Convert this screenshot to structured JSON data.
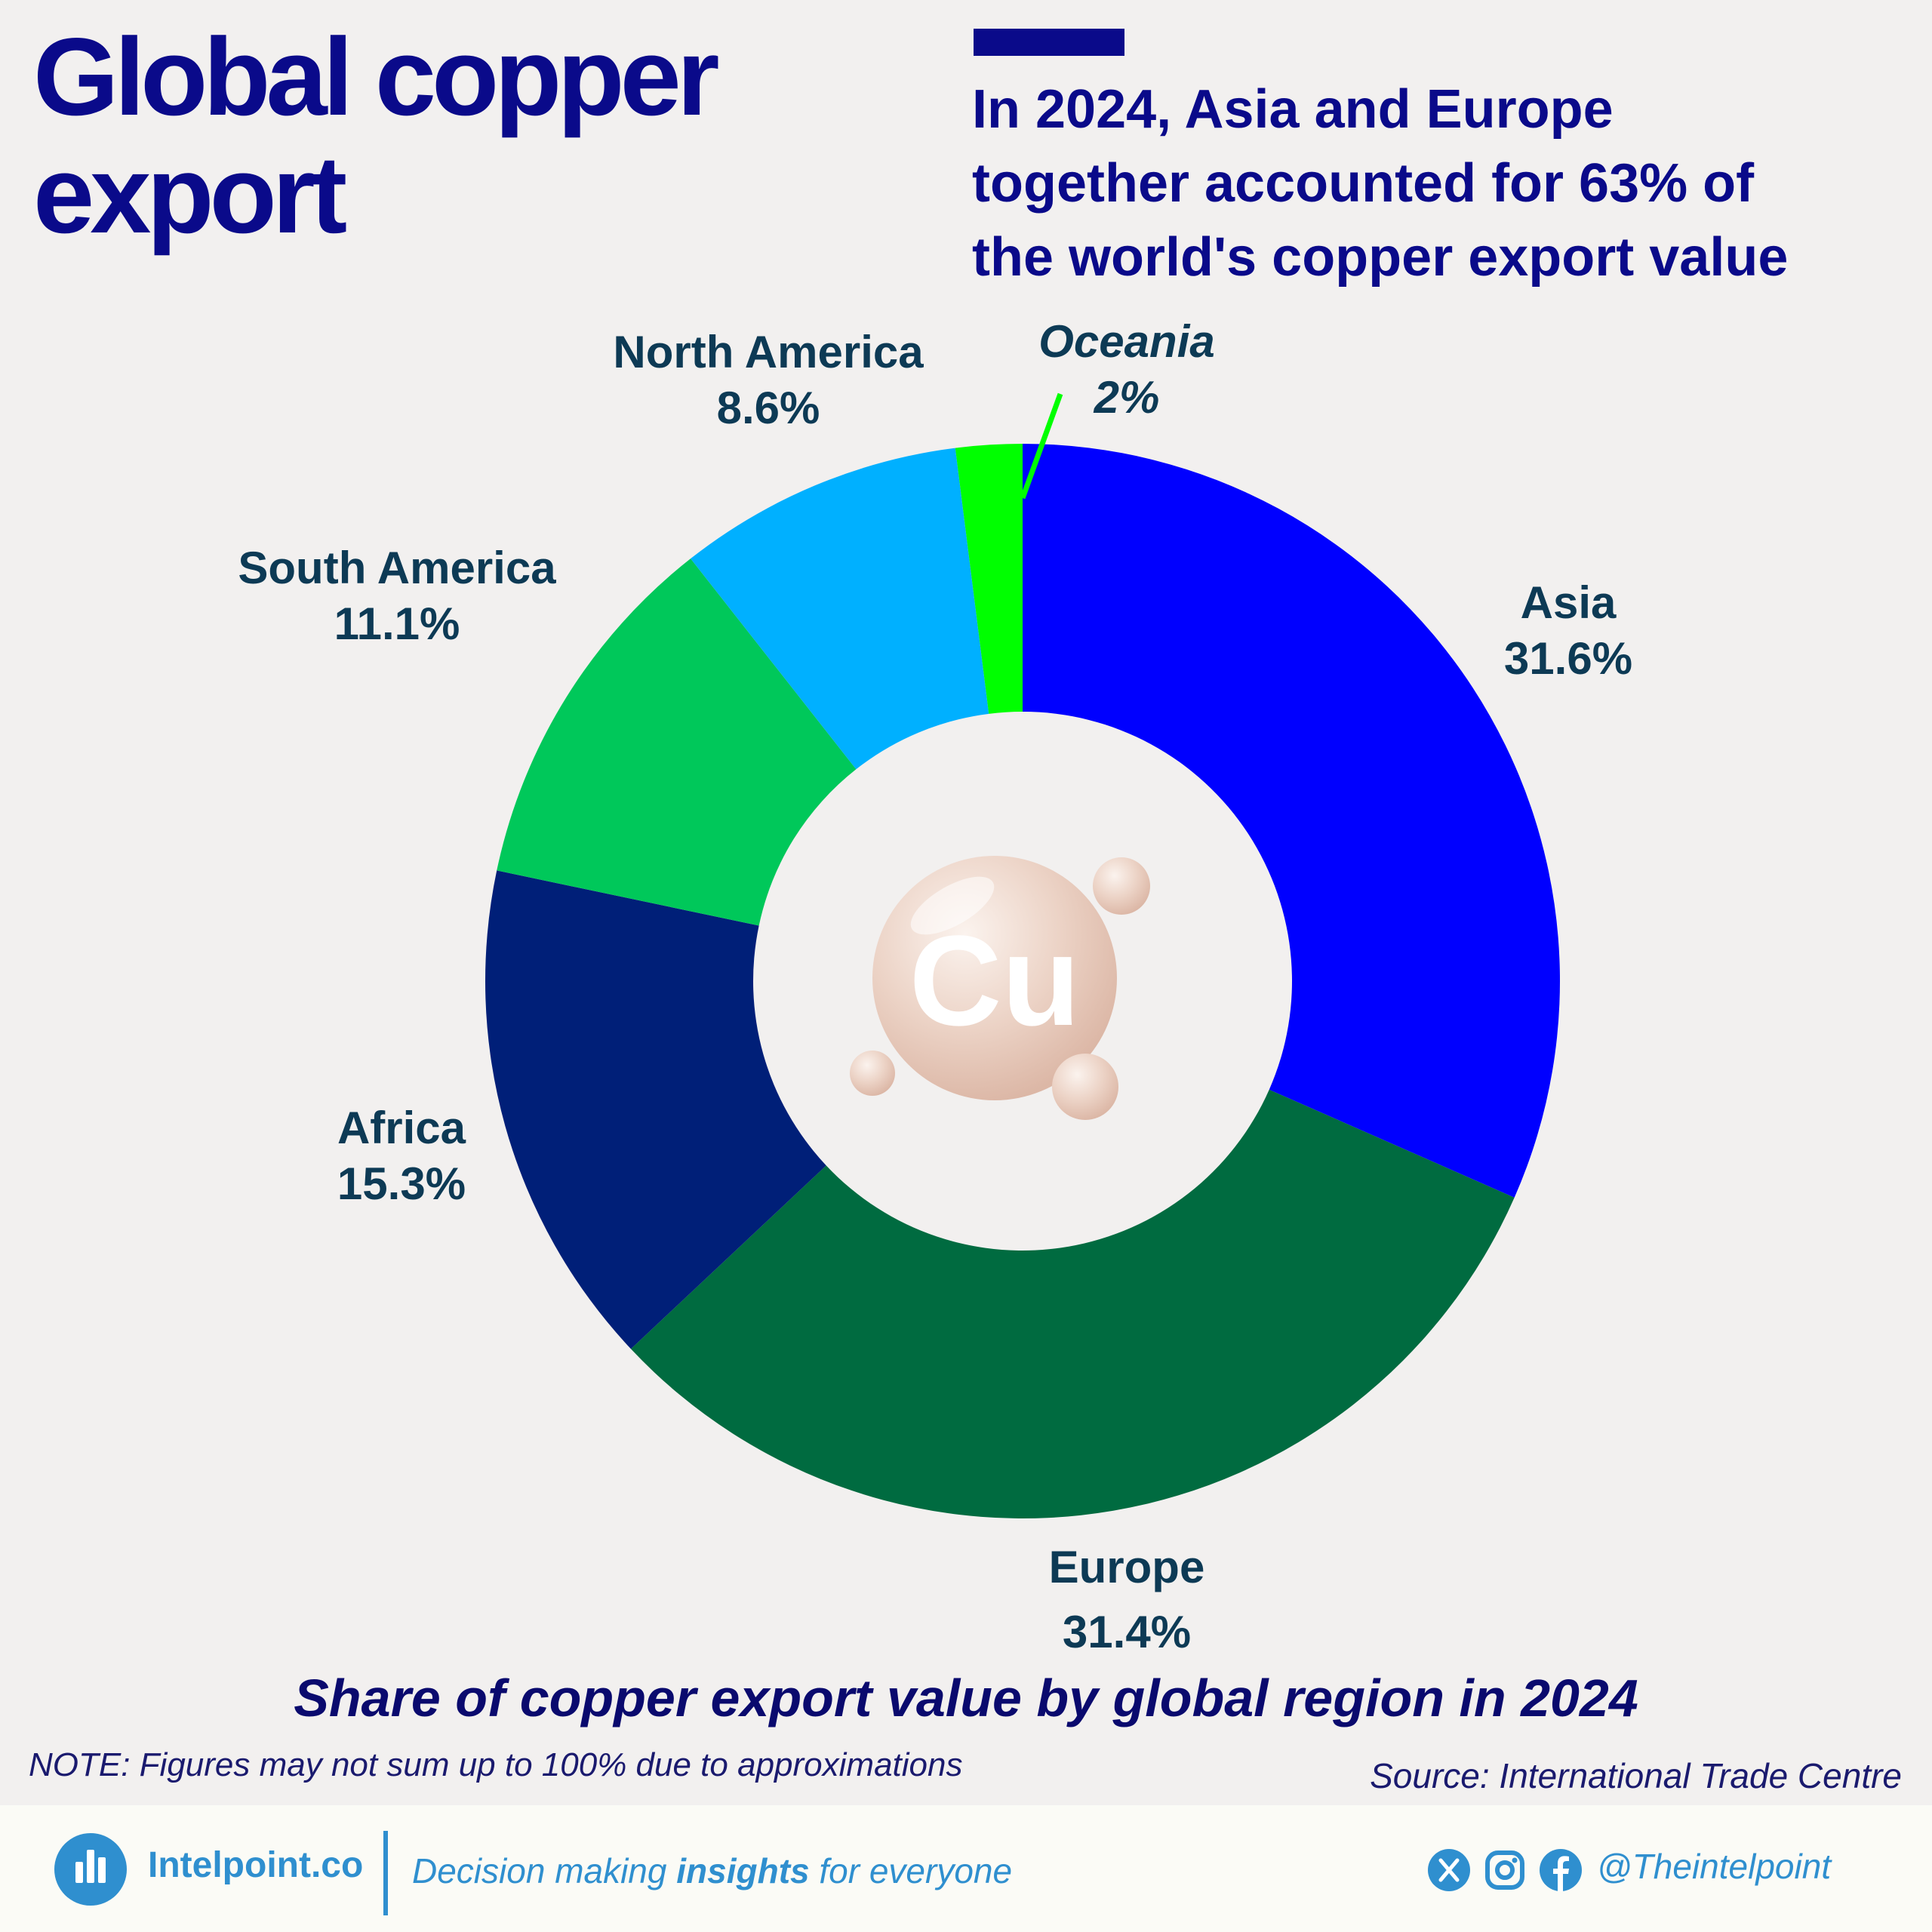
{
  "header": {
    "title_line1": "Global copper",
    "title_line2": "export",
    "headline_line1": "In 2024, Asia and Europe",
    "headline_line2": "together accounted for 63% of",
    "headline_line3": "the world's copper export value"
  },
  "chart_data": {
    "type": "pie",
    "style": "donut",
    "title": "Share of copper export value by global region in 2024",
    "unit": "%",
    "categories": [
      "Asia",
      "Europe",
      "Africa",
      "South America",
      "North America",
      "Oceania"
    ],
    "values": [
      31.6,
      31.4,
      15.3,
      11.1,
      8.6,
      2
    ],
    "value_labels": [
      "31.6%",
      "31.4%",
      "15.3%",
      "11.1%",
      "8.6%",
      "2%"
    ],
    "colors": [
      "#0000ff",
      "#006b40",
      "#001f78",
      "#00c85a",
      "#00b0ff",
      "#00ff00"
    ],
    "start": "12 o'clock, clockwise",
    "center_badge": "Cu"
  },
  "notes": {
    "note": "NOTE: Figures may not sum up to 100% due to approximations",
    "source": "Source: International Trade Centre"
  },
  "footer": {
    "brand": "Intelpoint.co",
    "tagline_pre": "Decision making ",
    "tagline_bold": "insights",
    "tagline_post": " for everyone",
    "handle": "@Theintelpoint",
    "icons": [
      "x-icon",
      "instagram-icon",
      "facebook-icon"
    ]
  }
}
